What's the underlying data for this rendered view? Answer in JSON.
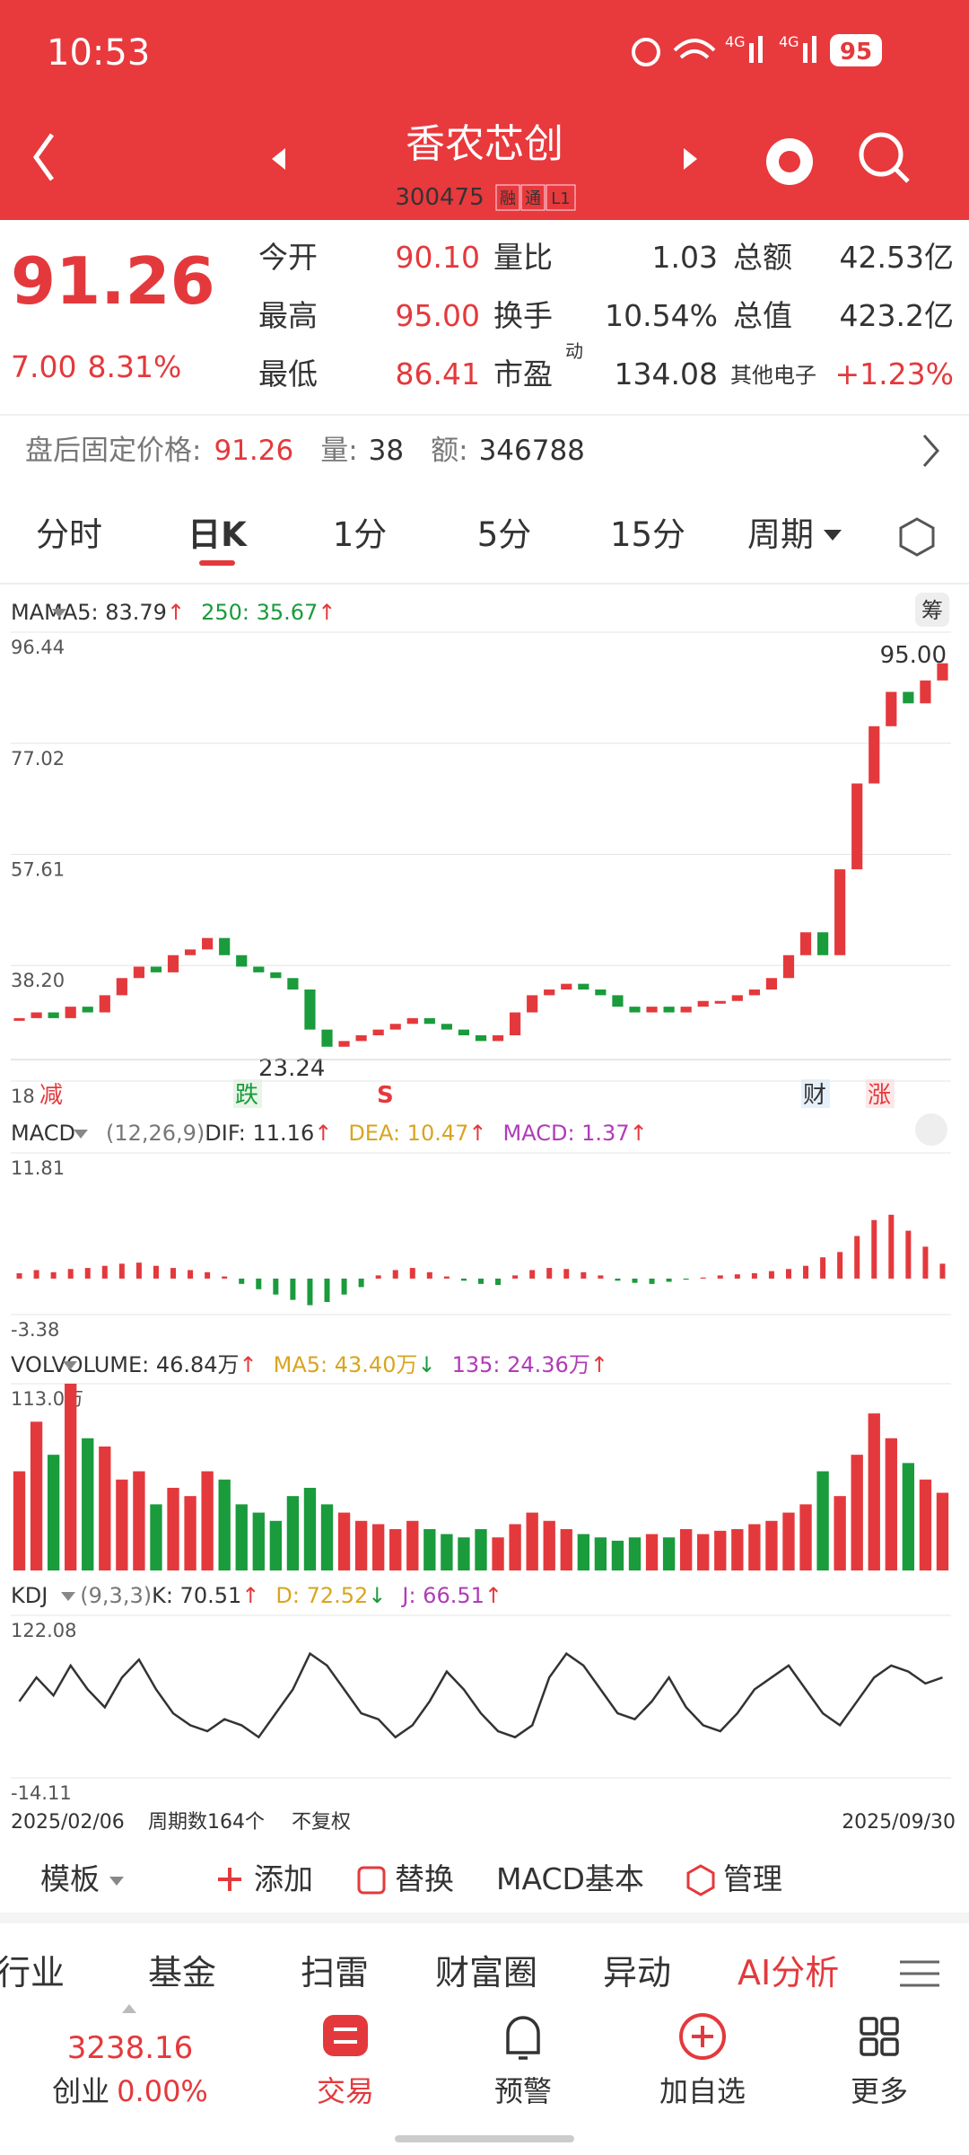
{
  "status_bar": {
    "time": "10:53",
    "network": [
      "4G",
      "4G"
    ],
    "battery": "95"
  },
  "header": {
    "title": "香农芯创",
    "code": "300475",
    "badges": [
      "融",
      "通",
      "L1"
    ]
  },
  "quote": {
    "price": "91.26",
    "change": "7.00",
    "change_pct": "8.31%",
    "fields": [
      {
        "label": "今开",
        "value": "90.10"
      },
      {
        "label": "量比",
        "value": "1.03"
      },
      {
        "label": "总额",
        "value": "42.53亿"
      },
      {
        "label": "最高",
        "value": "95.00"
      },
      {
        "label": "换手",
        "value": "10.54%"
      },
      {
        "label": "总值",
        "value": "423.2亿"
      },
      {
        "label": "最低",
        "value": "86.41"
      },
      {
        "label": "市盈",
        "value": "134.08",
        "sup": "动"
      },
      {
        "label": "其他电子",
        "value": "+1.23%"
      }
    ]
  },
  "after_hours": {
    "label": "盘后固定价格:",
    "price": "91.26",
    "volume_label": "量:",
    "volume": "38",
    "amount_label": "额:",
    "amount": "346788"
  },
  "period_tabs": [
    "分时",
    "日K",
    "1分",
    "5分",
    "15分",
    "周期"
  ],
  "chips_button": "筹",
  "price_panel": {
    "type": "candlestick",
    "name": "MA",
    "items": [
      {
        "text": "MA5: 83.79",
        "arrow": "↑",
        "color": "#333333"
      },
      {
        "text": "250: 35.67",
        "arrow": "↑",
        "color": "#1a9b3c"
      }
    ],
    "ylim": [
      18,
      96.44
    ],
    "yticks": [
      96.44,
      77.02,
      57.61,
      {
        "value": 38.2,
        "label": "38.20"
      },
      18
    ],
    "closes": [
      29,
      30,
      29,
      31,
      30,
      33,
      36,
      38,
      37,
      40,
      41,
      43,
      40,
      38,
      37,
      36,
      34,
      27,
      24,
      25,
      26,
      27,
      28,
      29,
      28,
      27,
      26,
      25,
      26,
      30,
      33,
      34,
      35,
      34,
      33,
      31,
      30,
      31,
      30,
      31,
      32,
      32,
      33,
      34,
      36,
      40,
      44,
      40,
      55,
      70,
      80,
      86,
      84,
      88,
      91
    ],
    "high_label": "95.00",
    "low_label": "23.24",
    "markers": [
      "减",
      "跌",
      "S",
      "财",
      "涨"
    ]
  },
  "macd_panel": {
    "type": "bar",
    "name": "MACD",
    "params": "(12,26,9)",
    "items": [
      {
        "text": "DIF: 11.16",
        "arrow": "↑",
        "color": "#333333"
      },
      {
        "text": "DEA: 10.47",
        "arrow": "↑",
        "color": "#d9a520"
      },
      {
        "text": "MACD: 1.37",
        "arrow": "↑",
        "color": "#b03bb8"
      }
    ],
    "ylim": [
      -3.38,
      11.81
    ],
    "yticks": [
      11.81,
      -3.38
    ],
    "values": [
      0.5,
      0.8,
      0.6,
      0.9,
      1.0,
      1.2,
      1.4,
      1.5,
      1.2,
      1.0,
      0.8,
      0.6,
      0.2,
      -0.5,
      -1.0,
      -1.5,
      -2.0,
      -2.5,
      -2.2,
      -1.5,
      -0.8,
      0.3,
      0.8,
      1.0,
      0.6,
      0.2,
      -0.2,
      -0.5,
      -0.6,
      0.3,
      0.8,
      1.0,
      0.9,
      0.6,
      0.3,
      -0.2,
      -0.4,
      -0.5,
      -0.3,
      -0.1,
      0.1,
      0.3,
      0.4,
      0.5,
      0.7,
      0.9,
      1.2,
      2.0,
      2.5,
      4.0,
      5.5,
      6.0,
      4.5,
      3.0,
      1.4
    ]
  },
  "vol_panel": {
    "type": "bar",
    "name": "VOL",
    "items": [
      {
        "text": "VOLUME: 46.84万",
        "arrow": "↑",
        "color": "#333333"
      },
      {
        "text": "MA5: 43.40万",
        "arrow": "↓",
        "color": "#d9a520"
      },
      {
        "text": "135: 24.36万",
        "arrow": "↑",
        "color": "#b03bb8"
      }
    ],
    "ylim": [
      0,
      113
    ],
    "yticks": [
      {
        "value": 113,
        "label": "113.0万"
      }
    ],
    "values": [
      60,
      90,
      70,
      113,
      80,
      75,
      55,
      60,
      40,
      50,
      45,
      60,
      55,
      40,
      35,
      30,
      45,
      50,
      40,
      35,
      30,
      28,
      25,
      30,
      25,
      22,
      20,
      25,
      20,
      28,
      35,
      30,
      25,
      22,
      20,
      18,
      20,
      22,
      20,
      25,
      22,
      24,
      25,
      28,
      30,
      35,
      40,
      60,
      45,
      70,
      95,
      80,
      65,
      55,
      47
    ]
  },
  "kdj_panel": {
    "type": "line",
    "name": "KDJ",
    "params": "(9,3,3)",
    "items": [
      {
        "text": "K: 70.51",
        "arrow": "↑",
        "color": "#333333"
      },
      {
        "text": "D: 72.52",
        "arrow": "↓",
        "color": "#d9a520"
      },
      {
        "text": "J: 66.51",
        "arrow": "↑",
        "color": "#b03bb8"
      }
    ],
    "ylim": [
      -14.11,
      122.08
    ],
    "yticks": [
      122.08,
      -14.11
    ],
    "values": [
      50,
      70,
      55,
      80,
      60,
      45,
      70,
      85,
      60,
      40,
      30,
      25,
      35,
      30,
      20,
      40,
      60,
      90,
      80,
      60,
      40,
      35,
      20,
      30,
      50,
      75,
      60,
      40,
      25,
      20,
      30,
      70,
      90,
      80,
      60,
      40,
      35,
      50,
      70,
      45,
      30,
      25,
      40,
      60,
      70,
      80,
      60,
      40,
      30,
      50,
      70,
      80,
      75,
      65,
      70
    ]
  },
  "footer_dates": {
    "start": "2025/02/06",
    "periods": "周期数164个",
    "adjust": "不复权",
    "end": "2025/09/30"
  },
  "toolbar": [
    "模板",
    "添加",
    "替换",
    "MACD基本",
    "管理"
  ],
  "bottom_tabs": [
    "行业",
    "基金",
    "扫雷",
    "财富圈",
    "异动",
    "AI分析"
  ],
  "nav": {
    "index_value": "3238.16",
    "index_name": "创业",
    "index_change": "0.00%",
    "items": [
      "交易",
      "预警",
      "加自选",
      "更多"
    ]
  }
}
